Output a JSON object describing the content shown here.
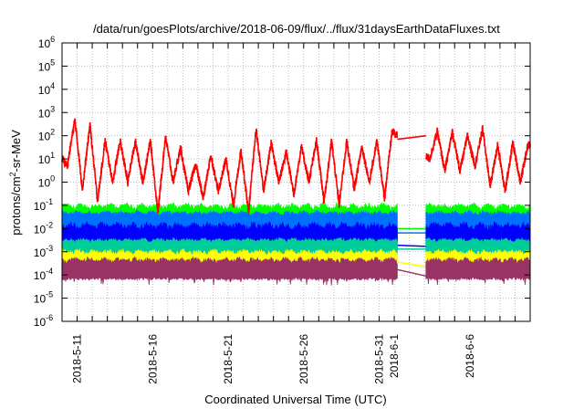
{
  "chart_data": {
    "type": "line",
    "title": "/data/run/goesPlots/archive/2018-06-09/flux/../flux/31daysEarthDataFluxes.txt",
    "xlabel": "Coordinated Universal Time (UTC)",
    "ylabel_base": "protons/cm",
    "ylabel_sup": "2",
    "ylabel_rest": "-sr-MeV",
    "x_start_date": "2018-05-10",
    "xlim_days": [
      0,
      31
    ],
    "ylim": [
      1e-06,
      1000000.0
    ],
    "yscale": "log",
    "grid": true,
    "y_ticks": [
      {
        "base": "10",
        "exp": "6",
        "value": 1000000.0
      },
      {
        "base": "10",
        "exp": "5",
        "value": 100000.0
      },
      {
        "base": "10",
        "exp": "4",
        "value": 10000.0
      },
      {
        "base": "10",
        "exp": "3",
        "value": 1000.0
      },
      {
        "base": "10",
        "exp": "2",
        "value": 100.0
      },
      {
        "base": "10",
        "exp": "1",
        "value": 10.0
      },
      {
        "base": "10",
        "exp": "0",
        "value": 1.0
      },
      {
        "base": "10",
        "exp": "-1",
        "value": 0.1
      },
      {
        "base": "10",
        "exp": "-2",
        "value": 0.01
      },
      {
        "base": "10",
        "exp": "-3",
        "value": 0.001
      },
      {
        "base": "10",
        "exp": "-4",
        "value": 0.0001
      },
      {
        "base": "10",
        "exp": "-5",
        "value": 1e-05
      },
      {
        "base": "10",
        "exp": "-6",
        "value": 1e-06
      }
    ],
    "x_ticks": [
      {
        "label": "2018-5-11",
        "day": 1
      },
      {
        "label": "2018-5-16",
        "day": 6
      },
      {
        "label": "2018-5-21",
        "day": 11
      },
      {
        "label": "2018-5-26",
        "day": 16
      },
      {
        "label": "2018-5-31",
        "day": 21
      },
      {
        "label": "2018-6-1",
        "day": 22
      },
      {
        "label": "2018-6-6",
        "day": 27
      }
    ],
    "data_gap_days": [
      22.2,
      24.1
    ],
    "oscillating_series": {
      "color": "#ff0000",
      "start_value": 10,
      "daily_trough_offset": 0.35,
      "daily_peak_offset": 0.85,
      "daily_peaks": [
        500,
        300,
        60,
        60,
        60,
        60,
        100,
        30,
        6,
        15,
        10,
        25,
        200,
        50,
        20,
        35,
        60,
        60,
        60,
        35,
        60,
        150,
        null,
        null,
        150,
        150,
        100,
        200,
        40,
        50,
        40
      ],
      "daily_troughs": [
        5,
        0.5,
        0.15,
        1,
        1,
        1,
        0.05,
        1,
        0.4,
        0.2,
        0.4,
        0.1,
        0.05,
        0.4,
        1,
        0.3,
        1,
        0.15,
        0.1,
        0.5,
        1,
        0.2,
        null,
        null,
        10,
        3,
        3,
        5,
        0.7,
        0.4,
        1
      ],
      "gap_connector": [
        70,
        100
      ]
    },
    "band_series": [
      {
        "color": "#00ff00",
        "low": 0.045,
        "high": [
          0.06,
          0.13
        ],
        "gap_connector": [
          0.01,
          0.01
        ]
      },
      {
        "color": "#0070ff",
        "low": 0.002,
        "high": [
          0.035,
          0.06
        ],
        "gap_connector": [
          0.0065,
          0.0065
        ]
      },
      {
        "color": "#0000ff",
        "low": 0.003,
        "high": [
          0.008,
          0.02
        ],
        "gap_connector": [
          0.0019,
          0.0017
        ]
      },
      {
        "color": "#00cc99",
        "low": 0.0009,
        "high": [
          0.0025,
          0.004
        ],
        "gap_connector": [
          0.0013,
          0.0013
        ]
      },
      {
        "color": "#ffff00",
        "low": 0.0004,
        "high": [
          0.0007,
          0.0013
        ],
        "gap_connector": [
          0.00036,
          0.00023
        ]
      },
      {
        "color": "#993366",
        "low": 8e-05,
        "high": [
          0.0003,
          0.0006
        ],
        "gap_connector": [
          0.00017,
          9e-05
        ]
      }
    ]
  }
}
